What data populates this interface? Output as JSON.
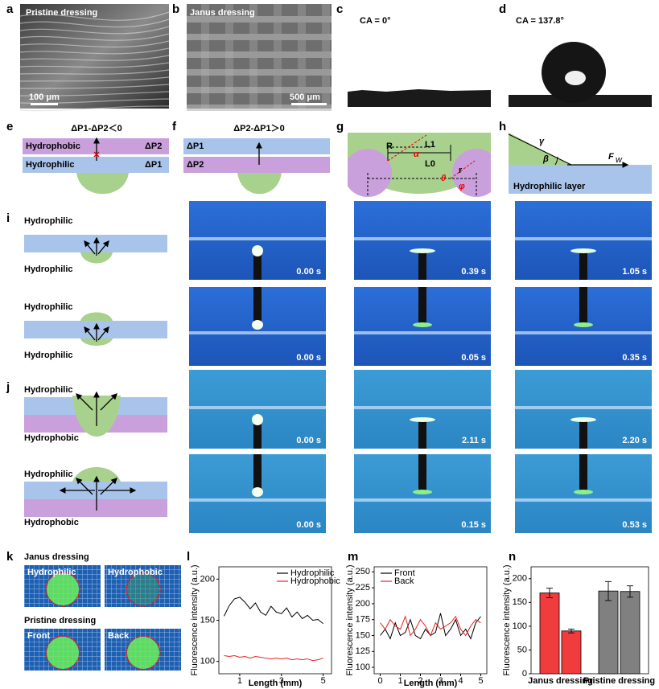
{
  "panels": {
    "a": {
      "label": "a",
      "caption": "Pristine dressing",
      "scale": "100 μm"
    },
    "b": {
      "label": "b",
      "caption": "Janus dressing",
      "scale": "500 μm"
    },
    "c": {
      "label": "c",
      "caption": "CA = 0°"
    },
    "d": {
      "label": "d",
      "caption": "CA = 137.8°"
    },
    "e": {
      "label": "e",
      "title": "ΔP1-ΔP2＜0",
      "top": "Hydrophobic",
      "top_p": "ΔP2",
      "bottom": "Hydrophilic",
      "bottom_p": "ΔP1"
    },
    "f": {
      "label": "f",
      "title": "ΔP2-ΔP1＞0",
      "top": "ΔP1",
      "bottom": "ΔP2"
    },
    "g": {
      "label": "g",
      "symbols": [
        "R",
        "α",
        "L1",
        "L0",
        "r",
        "θ",
        "φ"
      ]
    },
    "h": {
      "label": "h",
      "symbols": [
        "γ",
        "β"
      ],
      "force": "F",
      "force_sub": "w",
      "layer": "Hydrophilic layer"
    },
    "i": {
      "label": "i",
      "rows": [
        {
          "top": "Hydrophilic",
          "bottom": "Hydrophilic",
          "times": [
            "0.00 s",
            "0.39 s",
            "1.05 s"
          ]
        },
        {
          "top": "Hydrophilic",
          "bottom": "Hydrophilic",
          "times": [
            "0.00 s",
            "0.05 s",
            "0.35 s"
          ]
        }
      ]
    },
    "j": {
      "label": "j",
      "rows": [
        {
          "top": "Hydrophilic",
          "bottom": "Hydrophobic",
          "times": [
            "0.00 s",
            "2.11 s",
            "2.20 s"
          ]
        },
        {
          "top": "Hydrophilic",
          "bottom": "Hydrophobic",
          "times": [
            "0.00 s",
            "0.15 s",
            "0.53 s"
          ]
        }
      ]
    },
    "k": {
      "label": "k",
      "title1": "Janus dressing",
      "tiles1": [
        "Hydrophilic",
        "Hydrophobic"
      ],
      "title2": "Pristine dressing",
      "tiles2": [
        "Front",
        "Back"
      ]
    }
  },
  "chart_data": [
    {
      "type": "line",
      "panel": "l",
      "ylabel": "Fluorescence intensity (a.u.)",
      "xlabel": "Length (mm)",
      "x": [
        0.25,
        0.5,
        0.75,
        1,
        1.25,
        1.5,
        1.75,
        2,
        2.25,
        2.5,
        2.75,
        3,
        3.25,
        3.5,
        3.75,
        4,
        4.25,
        4.5,
        4.75,
        5
      ],
      "series": [
        {
          "name": "Hydrophilic",
          "color": "#000000",
          "values": [
            155,
            168,
            176,
            178,
            172,
            164,
            171,
            160,
            156,
            167,
            160,
            158,
            165,
            154,
            160,
            152,
            156,
            150,
            151,
            146
          ]
        },
        {
          "name": "Hydrophobic",
          "color": "#e8221e",
          "values": [
            107,
            106,
            107,
            105,
            106,
            104,
            106,
            105,
            104,
            103,
            104,
            103,
            104,
            102,
            103,
            102,
            103,
            101,
            102,
            104
          ]
        }
      ],
      "xlim": [
        0,
        5.4
      ],
      "ylim": [
        85,
        215
      ],
      "xticks": [
        1,
        3,
        5
      ],
      "yticks": [
        100,
        150,
        200
      ],
      "legend": "upper right"
    },
    {
      "type": "line",
      "panel": "m",
      "ylabel": "Fluorescence intensity (a.u.)",
      "xlabel": "Length (mm)",
      "x": [
        0,
        0.25,
        0.5,
        0.75,
        1,
        1.25,
        1.5,
        1.75,
        2,
        2.25,
        2.5,
        2.75,
        3,
        3.25,
        3.5,
        3.75,
        4,
        4.25,
        4.5,
        4.75,
        5
      ],
      "series": [
        {
          "name": "Front",
          "color": "#000000",
          "values": [
            150,
            160,
            145,
            170,
            150,
            155,
            175,
            150,
            145,
            160,
            150,
            155,
            185,
            150,
            160,
            175,
            150,
            160,
            145,
            170,
            180
          ]
        },
        {
          "name": "Back",
          "color": "#e8221e",
          "values": [
            170,
            160,
            175,
            165,
            160,
            180,
            150,
            160,
            175,
            165,
            150,
            170,
            160,
            165,
            170,
            180,
            160,
            150,
            165,
            175,
            170
          ]
        }
      ],
      "xlim": [
        -0.3,
        5.3
      ],
      "ylim": [
        90,
        258
      ],
      "xticks": [
        0,
        1,
        2,
        3,
        4,
        5
      ],
      "yticks": [
        100,
        125,
        150,
        175,
        200,
        225,
        250
      ],
      "legend": "upper left"
    },
    {
      "type": "bar",
      "panel": "n",
      "ylabel": "Fluorescence intensity (a.u.)",
      "categories": [
        "Janus dressing",
        "Pristine dressing"
      ],
      "colors": [
        "#f03c3c",
        "#808080"
      ],
      "series": [
        {
          "values": [
            170,
            174
          ],
          "errors": [
            10,
            20
          ]
        },
        {
          "values": [
            90,
            173
          ],
          "errors": [
            4,
            12
          ]
        }
      ],
      "ylim": [
        0,
        225
      ],
      "yticks": [
        0,
        50,
        100,
        150,
        200
      ]
    }
  ]
}
